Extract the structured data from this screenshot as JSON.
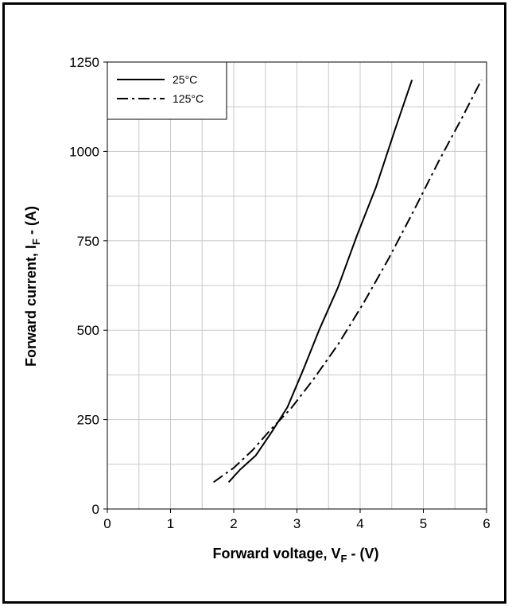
{
  "chart_data": {
    "type": "line",
    "xlabel": {
      "main": "Forward voltage, V",
      "sub": "F",
      "suffix": " - (V)"
    },
    "ylabel": {
      "main": "Forward current, I",
      "sub": "F",
      "suffix": " - (A)"
    },
    "xlim": [
      0,
      6
    ],
    "ylim": [
      0,
      1250
    ],
    "x_ticks": [
      "0",
      "1",
      "2",
      "3",
      "4",
      "5",
      "6"
    ],
    "y_ticks": [
      "0",
      "250",
      "500",
      "750",
      "1000",
      "1250"
    ],
    "grid": true,
    "legend_position": "top-left",
    "series": [
      {
        "name": "25°C",
        "style": "solid",
        "color": "#000000",
        "points": [
          [
            1.92,
            75
          ],
          [
            2.1,
            110
          ],
          [
            2.35,
            150
          ],
          [
            2.6,
            215
          ],
          [
            2.85,
            285
          ],
          [
            3.1,
            390
          ],
          [
            3.35,
            500
          ],
          [
            3.65,
            620
          ],
          [
            3.95,
            765
          ],
          [
            4.25,
            900
          ],
          [
            4.55,
            1060
          ],
          [
            4.82,
            1200
          ]
        ]
      },
      {
        "name": "125°C",
        "style": "dashdot",
        "color": "#000000",
        "points": [
          [
            1.68,
            75
          ],
          [
            2.0,
            115
          ],
          [
            2.3,
            165
          ],
          [
            2.6,
            225
          ],
          [
            2.9,
            280
          ],
          [
            3.25,
            360
          ],
          [
            3.65,
            460
          ],
          [
            4.05,
            575
          ],
          [
            4.45,
            700
          ],
          [
            4.85,
            835
          ],
          [
            5.25,
            975
          ],
          [
            5.6,
            1090
          ],
          [
            5.92,
            1200
          ]
        ]
      }
    ]
  }
}
